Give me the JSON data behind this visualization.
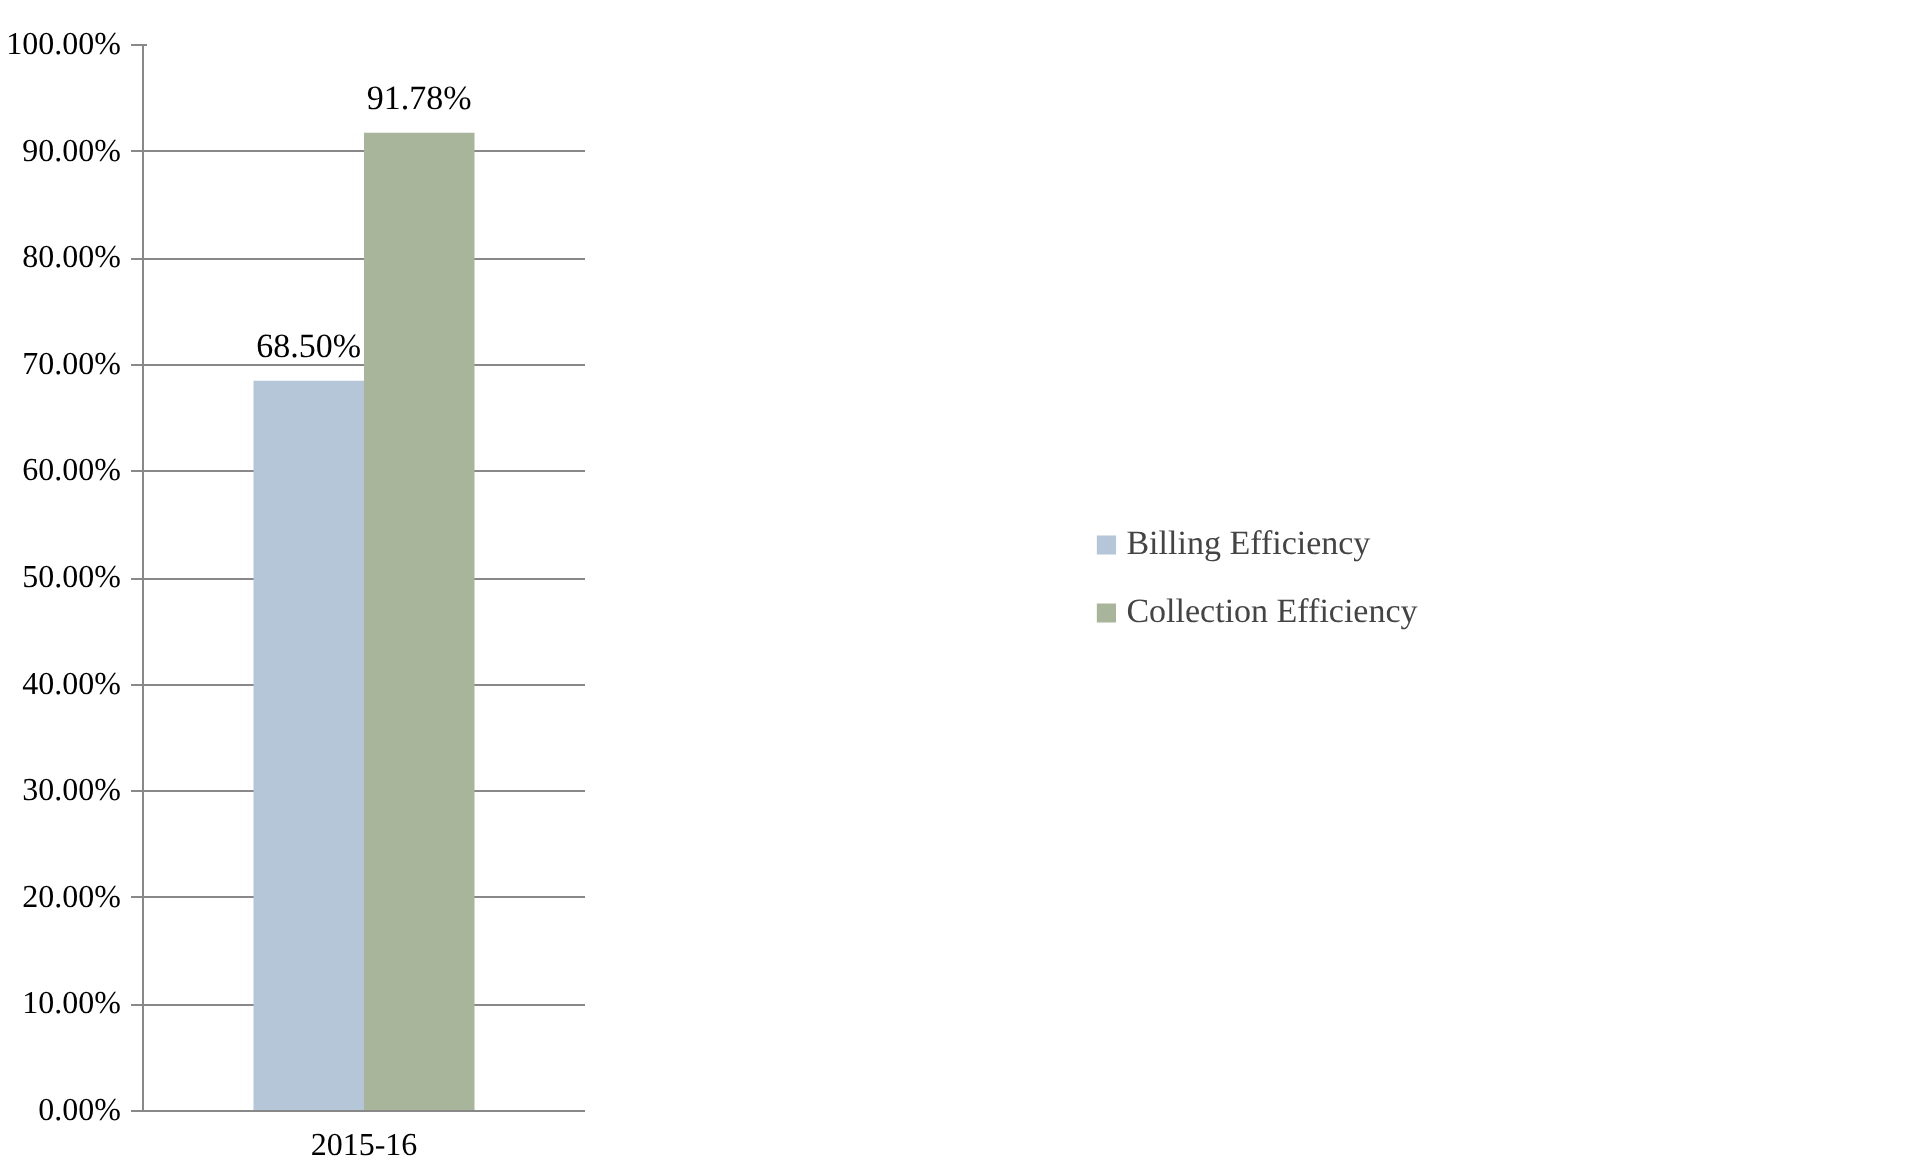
{
  "chart_data": {
    "type": "bar",
    "categories": [
      "2015-16"
    ],
    "series": [
      {
        "name": "Billing Efficiency",
        "color": "#b4c6d8",
        "values": [
          68.5
        ],
        "value_labels": [
          "68.50%"
        ]
      },
      {
        "name": "Collection Efficiency",
        "color": "#a8b59b",
        "values": [
          91.78
        ],
        "value_labels": [
          "91.78%"
        ]
      }
    ],
    "ylim": [
      0,
      100
    ],
    "yticks": [
      {
        "value": 0,
        "label": "0.00%"
      },
      {
        "value": 10,
        "label": "10.00%"
      },
      {
        "value": 20,
        "label": "20.00%"
      },
      {
        "value": 30,
        "label": "30.00%"
      },
      {
        "value": 40,
        "label": "40.00%"
      },
      {
        "value": 50,
        "label": "50.00%"
      },
      {
        "value": 60,
        "label": "60.00%"
      },
      {
        "value": 70,
        "label": "70.00%"
      },
      {
        "value": 80,
        "label": "80.00%"
      },
      {
        "value": 90,
        "label": "90.00%"
      },
      {
        "value": 100,
        "label": "100.00%"
      }
    ],
    "grid": "y",
    "legend": "right"
  }
}
